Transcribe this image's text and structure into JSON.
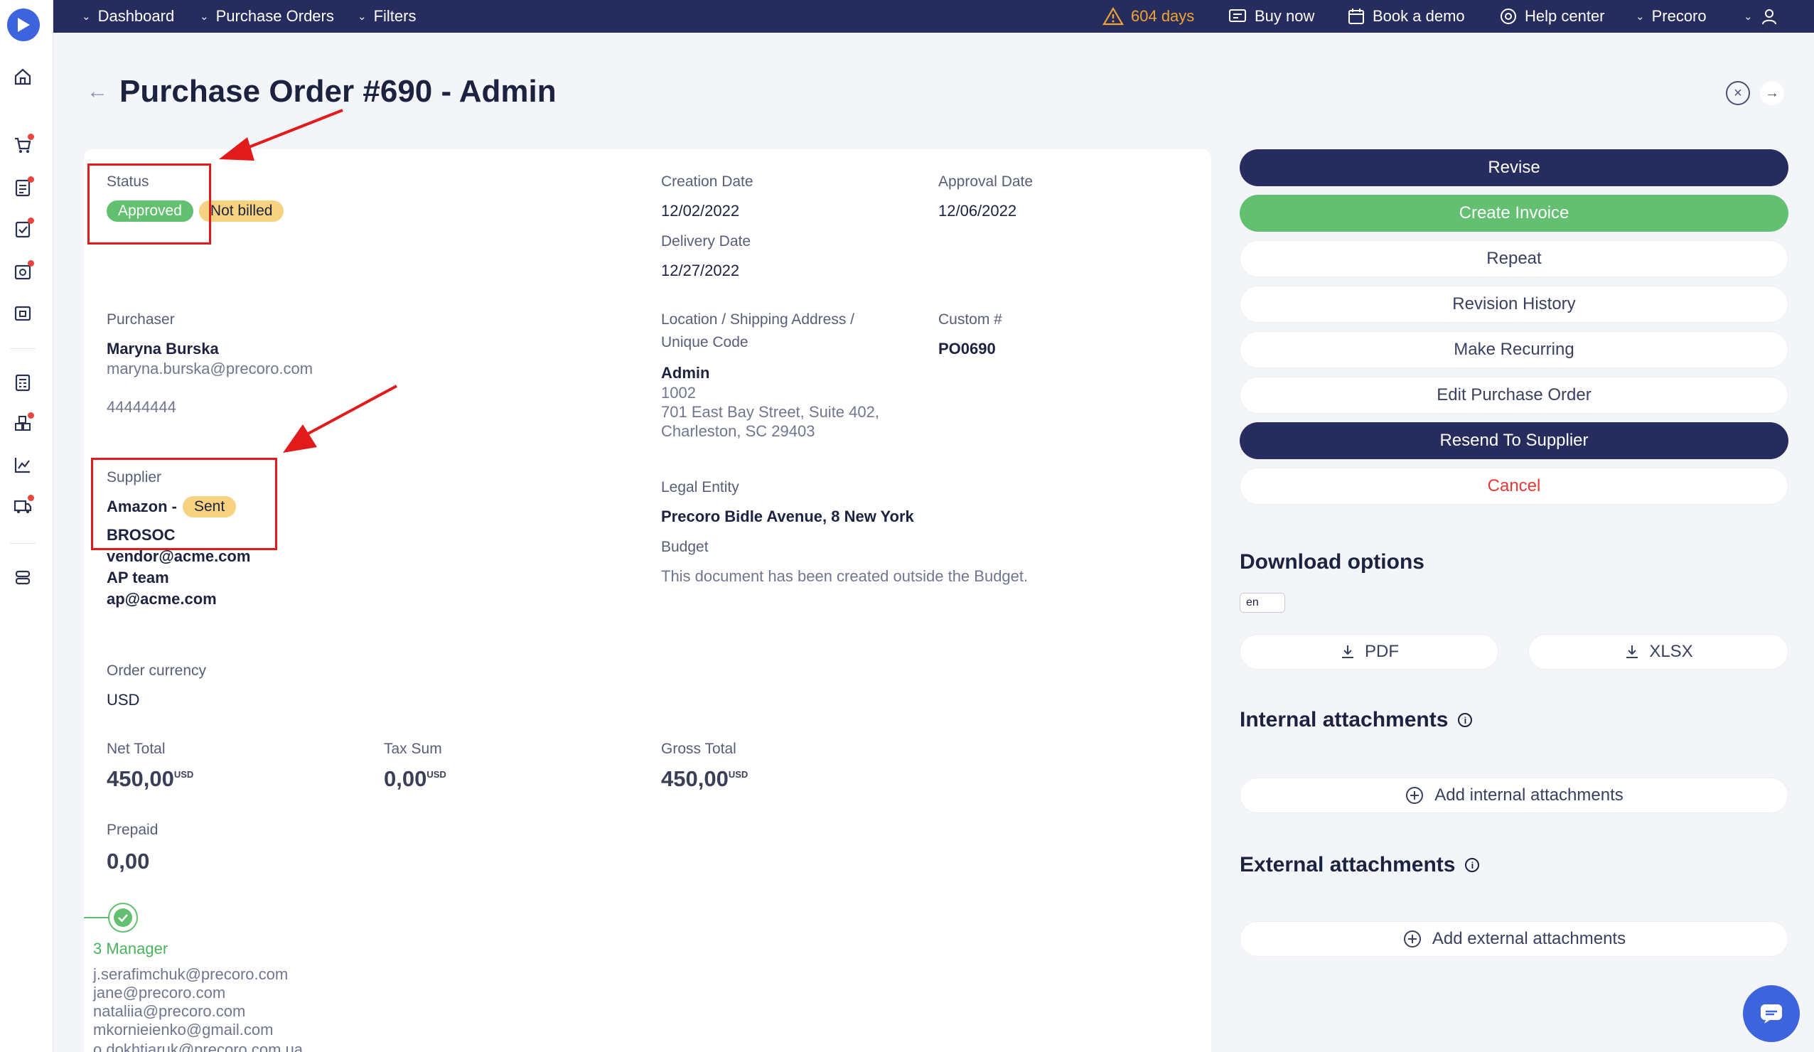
{
  "topbar": {
    "nav": [
      "Dashboard",
      "Purchase Orders",
      "Filters"
    ],
    "trial": "604 days",
    "buy_now": "Buy now",
    "book_demo": "Book a demo",
    "help_center": "Help center",
    "company": "Precoro"
  },
  "page": {
    "title": "Purchase Order #690 - Admin"
  },
  "details": {
    "status_label": "Status",
    "status_badge": "Approved",
    "billing_badge": "Not billed",
    "creation_date_label": "Creation Date",
    "creation_date": "12/02/2022",
    "approval_date_label": "Approval Date",
    "approval_date": "12/06/2022",
    "delivery_date_label": "Delivery Date",
    "delivery_date": "12/27/2022",
    "purchaser_label": "Purchaser",
    "purchaser_name": "Maryna Burska",
    "purchaser_email": "maryna.burska@precoro.com",
    "purchaser_phone": "44444444",
    "location_label_1": "Location / Shipping Address /",
    "location_label_2": "Unique Code",
    "location_name": "Admin",
    "location_code": "1002",
    "location_address_1": "701 East Bay Street, Suite 402,",
    "location_address_2": "Charleston, SC 29403",
    "custom_label": "Custom #",
    "custom_value": "PO0690",
    "supplier_label": "Supplier",
    "supplier_name_1": "Amazon -",
    "supplier_badge": "Sent",
    "supplier_name_2": "BROSOC",
    "supplier_email": "vendor@acme.com",
    "supplier_contact": "AP team",
    "supplier_contact_email": "ap@acme.com",
    "legal_entity_label": "Legal Entity",
    "legal_entity": "Precoro Bidle Avenue, 8 New York",
    "budget_label": "Budget",
    "budget_text": "This document has been created outside the Budget.",
    "currency_label": "Order currency",
    "currency": "USD",
    "net_total_label": "Net Total",
    "net_total": "450,00",
    "tax_sum_label": "Tax Sum",
    "tax_sum": "0,00",
    "gross_total_label": "Gross Total",
    "gross_total": "450,00",
    "currency_suffix": "USD",
    "prepaid_label": "Prepaid",
    "prepaid": "0,00"
  },
  "approval": {
    "step": "3 Manager",
    "emails": [
      "j.serafimchuk@precoro.com",
      "jane@precoro.com",
      "nataliia@precoro.com",
      "mkornieienko@gmail.com",
      "o.dokhtiaruk@precoro.com.ua"
    ]
  },
  "actions": {
    "revise": "Revise",
    "create_invoice": "Create Invoice",
    "repeat": "Repeat",
    "revision_history": "Revision History",
    "make_recurring": "Make Recurring",
    "edit": "Edit Purchase Order",
    "resend": "Resend To Supplier",
    "cancel": "Cancel"
  },
  "downloads": {
    "title": "Download options",
    "lang": "en",
    "pdf": "PDF",
    "xlsx": "XLSX"
  },
  "attachments": {
    "internal_title": "Internal attachments",
    "internal_add": "Add internal attachments",
    "external_title": "External attachments",
    "external_add": "Add external attachments"
  },
  "colors": {
    "navy": "#262c5d",
    "green": "#62c070",
    "yellow": "#f7d280",
    "danger": "#e53935",
    "annotation_red": "#e11b1b"
  }
}
